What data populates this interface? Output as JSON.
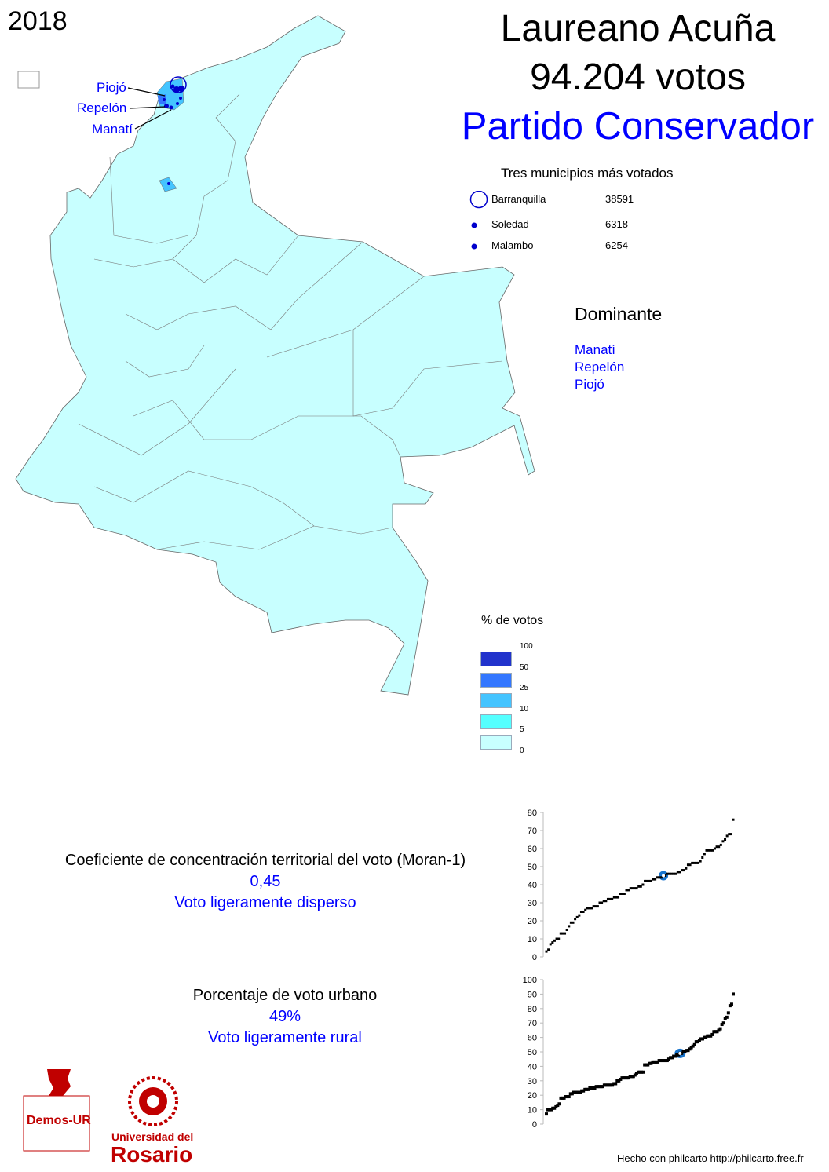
{
  "year": "2018",
  "candidate": "Laureano Acuña",
  "votes": "94.204 votos",
  "party": "Partido Conservador",
  "top_municipalities": {
    "title": "Tres municipios más votados",
    "items": [
      {
        "name": "Barranquilla",
        "value": "38591",
        "symbol": "large-circle"
      },
      {
        "name": "Soledad",
        "value": "6318",
        "symbol": "dot"
      },
      {
        "name": "Malambo",
        "value": "6254",
        "symbol": "dot"
      }
    ]
  },
  "dominant": {
    "title": "Dominante",
    "items": [
      "Manatí",
      "Repelón",
      "Piojó"
    ]
  },
  "map_labels": [
    "Piojó",
    "Repelón",
    "Manatí"
  ],
  "legend": {
    "title": "% de votos",
    "classes": [
      {
        "label": "100",
        "color": "#2233cc"
      },
      {
        "label": "50",
        "color": "#3377ff"
      },
      {
        "label": "25",
        "color": "#44c4ff"
      },
      {
        "label": "10",
        "color": "#55ffff"
      },
      {
        "label": "5",
        "color": "#c8ffff"
      },
      {
        "label": "0",
        "color": null
      }
    ]
  },
  "moran": {
    "label": "Coeficiente de concentración territorial del voto (Moran-1)",
    "value": "0,45",
    "description": "Voto ligeramente disperso"
  },
  "urban": {
    "label": "Porcentaje de voto urbano",
    "value": "49%",
    "description": "Voto ligeramente rural"
  },
  "logos": {
    "demos": "Demos-UR",
    "university_line1": "Universidad del",
    "university_line2": "Rosario"
  },
  "footer": "Hecho con philcarto http://philcarto.free.fr",
  "colors": {
    "accent": "#0000ff",
    "map_fill": "#c8ffff",
    "highlight": "#1874cd",
    "logo_red": "#c00000"
  },
  "chart_data": [
    {
      "type": "scatter",
      "ylim": [
        0,
        80
      ],
      "yticks": [
        0,
        10,
        20,
        30,
        40,
        50,
        60,
        70,
        80
      ],
      "highlight_value": 45,
      "values": [
        3,
        4,
        7,
        8,
        9,
        10,
        10,
        13,
        13,
        13,
        15,
        17,
        19,
        19,
        21,
        22,
        23,
        25,
        25,
        26,
        27,
        27,
        27,
        28,
        28,
        28,
        30,
        30,
        31,
        31,
        32,
        32,
        32,
        33,
        33,
        33,
        35,
        35,
        35,
        37,
        37,
        38,
        38,
        38,
        38,
        39,
        39,
        40,
        42,
        42,
        42,
        42,
        43,
        43,
        44,
        44,
        44,
        45,
        45,
        46,
        46,
        46,
        46,
        46,
        47,
        47,
        48,
        48,
        49,
        51,
        51,
        52,
        52,
        52,
        52,
        53,
        55,
        57,
        59,
        59,
        59,
        59,
        60,
        61,
        61,
        62,
        64,
        65,
        67,
        68,
        68,
        76
      ],
      "highlight_index": 57
    },
    {
      "type": "scatter",
      "ylim": [
        0,
        100
      ],
      "yticks": [
        0,
        10,
        20,
        30,
        40,
        50,
        60,
        70,
        80,
        90,
        100
      ],
      "highlight_value": 49,
      "values": [
        7,
        10,
        10,
        10,
        11,
        11,
        12,
        13,
        14,
        18,
        18,
        18,
        19,
        19,
        19,
        21,
        21,
        22,
        22,
        22,
        22,
        22,
        23,
        23,
        24,
        24,
        24,
        25,
        25,
        25,
        25,
        26,
        26,
        26,
        26,
        26,
        27,
        27,
        27,
        27,
        27,
        27,
        28,
        28,
        30,
        30,
        31,
        32,
        32,
        32,
        32,
        32,
        33,
        33,
        33,
        34,
        35,
        36,
        36,
        36,
        36,
        41,
        41,
        41,
        42,
        42,
        43,
        43,
        43,
        43,
        44,
        44,
        44,
        44,
        44,
        44,
        45,
        46,
        46,
        47,
        47,
        48,
        48,
        49,
        49,
        50,
        50,
        51,
        51,
        52,
        53,
        54,
        55,
        57,
        57,
        58,
        59,
        59,
        60,
        60,
        61,
        61,
        61,
        62,
        64,
        64,
        64,
        65,
        66,
        69,
        70,
        73,
        74,
        77,
        82,
        83,
        90
      ],
      "highlight_index": 83
    }
  ]
}
